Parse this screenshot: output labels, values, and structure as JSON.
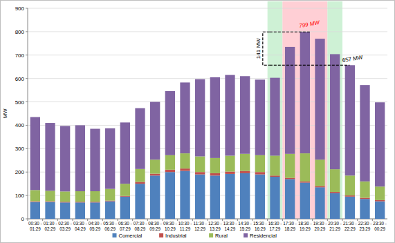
{
  "chart_data": {
    "type": "bar",
    "stacked": true,
    "grid": true,
    "legend": "bottom",
    "y_label": "MW",
    "ylim": [
      0,
      900
    ],
    "yticks": [
      0,
      100,
      200,
      300,
      400,
      500,
      600,
      700,
      800,
      900
    ],
    "categories": [
      "00:30 - 01:29",
      "01:30 - 02:29",
      "02:30 - 03:29",
      "03:30 - 04:29",
      "04:30 - 05:29",
      "05:30 - 06:29",
      "06:30 - 07:29",
      "07:30 - 08:29",
      "08:30 - 09:29",
      "09:30 - 10:29",
      "10:30 - 11:29",
      "11:30 - 12:29",
      "12:30 - 13:29",
      "13:30 - 14:29",
      "14:30 - 15:29",
      "15:30 - 16:29",
      "16:30 - 17:29",
      "17:30 - 18:29",
      "18:30 - 19:29",
      "19:30 - 20:29",
      "20:30 - 21:29",
      "21:30 - 22:29",
      "22:30 - 23:29",
      "23:30 - 00:29"
    ],
    "series": [
      {
        "name": "Comercial",
        "color": "#4f81bd",
        "values": [
          72,
          72,
          70,
          70,
          70,
          75,
          95,
          150,
          185,
          200,
          205,
          190,
          185,
          192,
          195,
          190,
          180,
          170,
          155,
          135,
          110,
          95,
          85,
          75
        ]
      },
      {
        "name": "Industrial",
        "color": "#c0504d",
        "values": [
          3,
          3,
          3,
          3,
          3,
          3,
          3,
          8,
          8,
          10,
          10,
          10,
          10,
          10,
          10,
          10,
          5,
          5,
          5,
          5,
          5,
          5,
          5,
          5
        ]
      },
      {
        "name": "Rural",
        "color": "#9bbb59",
        "values": [
          48,
          45,
          44,
          45,
          45,
          50,
          52,
          55,
          60,
          62,
          65,
          67,
          65,
          68,
          73,
          72,
          85,
          103,
          120,
          113,
          97,
          85,
          70,
          58
        ]
      },
      {
        "name": "Residencial",
        "color": "#8064a2",
        "values": [
          312,
          290,
          280,
          282,
          267,
          259,
          262,
          260,
          247,
          274,
          303,
          330,
          345,
          345,
          332,
          323,
          333,
          457,
          519,
          517,
          492,
          472,
          412,
          360
        ]
      }
    ],
    "highlights": [
      {
        "from": "16:30 - 17:29",
        "to": "16:30 - 17:29",
        "color": "#c6efce"
      },
      {
        "from": "17:30 - 18:29",
        "to": "19:30 - 20:29",
        "color": "#ffc7ce"
      },
      {
        "from": "20:30 - 21:29",
        "to": "20:30 - 21:29",
        "color": "#c6efce"
      }
    ],
    "annotations": [
      {
        "text": "799 MW",
        "value": 799,
        "color": "#ff0000"
      },
      {
        "text": "657 MW",
        "value": 657,
        "color": "#000000"
      },
      {
        "text": "141 MW",
        "from": 799,
        "to": 657,
        "color": "#000000"
      }
    ]
  }
}
